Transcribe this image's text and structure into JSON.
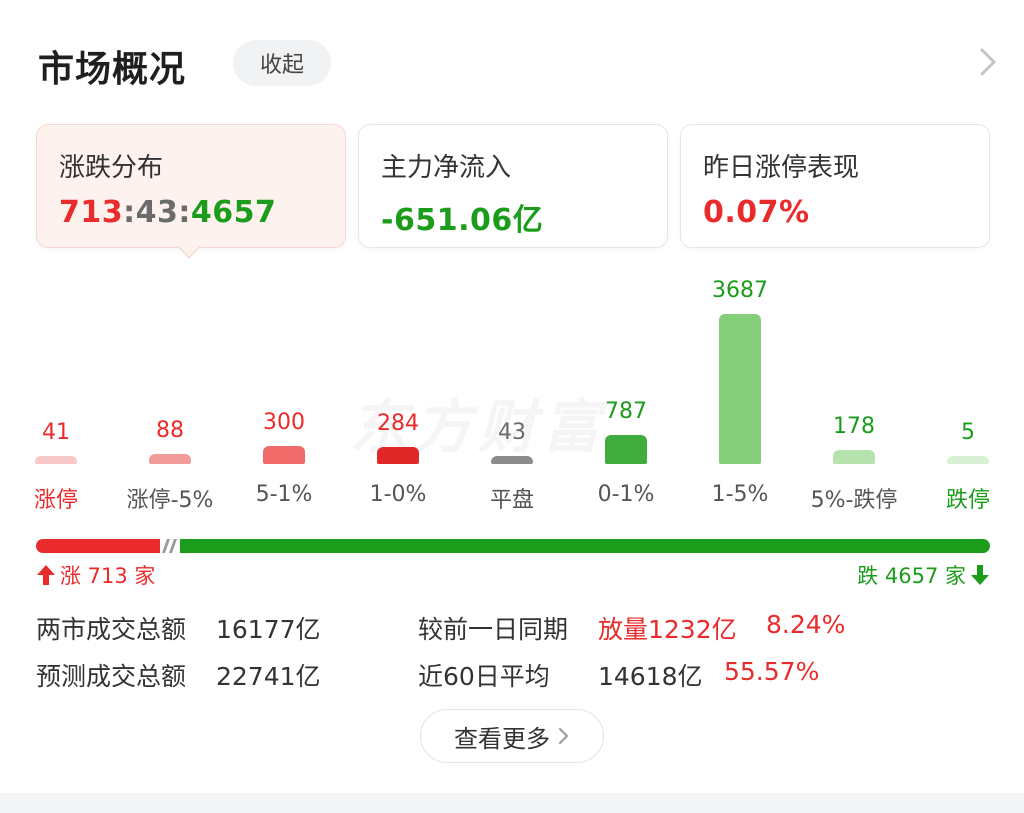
{
  "header": {
    "title": "市场概况",
    "collapse_label": "收起"
  },
  "cards": [
    {
      "label": "涨跌分布",
      "up": "713",
      "sep1": ":",
      "flat": "43",
      "sep2": ":",
      "down": "4657"
    },
    {
      "label": "主力净流入",
      "value": "-651.06亿"
    },
    {
      "label": "昨日涨停表现",
      "value": "0.07%"
    }
  ],
  "watermark": "东方财富",
  "chart_data": {
    "type": "bar",
    "categories": [
      "涨停",
      "涨停-5%",
      "5-1%",
      "1-0%",
      "平盘",
      "0-1%",
      "1-5%",
      "5%-跌停",
      "跌停"
    ],
    "values": [
      41,
      88,
      300,
      284,
      43,
      787,
      3687,
      178,
      5
    ],
    "value_labels": [
      "41",
      "88",
      "300",
      "284",
      "43",
      "787",
      "3687",
      "178",
      "5"
    ],
    "colors": [
      "#f7c9c9",
      "#f29b9b",
      "#f06a6a",
      "#e02828",
      "#8c8c8c",
      "#3fae3f",
      "#86cf7a",
      "#b6e2ad",
      "#d8f0d3"
    ],
    "label_colors": [
      "#ea2b2b",
      "#ea2b2b",
      "#ea2b2b",
      "#ea2b2b",
      "#6b6b6b",
      "#1b9c1b",
      "#1b9c1b",
      "#1b9c1b",
      "#1b9c1b"
    ],
    "category_colors": [
      "#ea2b2b",
      "#555555",
      "#555555",
      "#555555",
      "#555555",
      "#555555",
      "#555555",
      "#555555",
      "#1b9c1b"
    ],
    "ylim": [
      0,
      3687
    ]
  },
  "ratio": {
    "up": 713,
    "flat": 43,
    "down": 4657,
    "up_label": "涨 713 家",
    "down_label": "跌 4657 家"
  },
  "stats": {
    "row1": {
      "label": "两市成交总额",
      "value": "16177亿",
      "compare_label": "较前一日同期",
      "change": "放量1232亿",
      "pct": "8.24%"
    },
    "row2": {
      "label": "预测成交总额",
      "value": "22741亿",
      "compare_label": "近60日平均",
      "change": "14618亿",
      "pct": "55.57%"
    }
  },
  "more_label": "查看更多",
  "colors": {
    "up": "#ea2b2b",
    "down": "#1b9c1b",
    "flat": "#8c8c8c"
  }
}
